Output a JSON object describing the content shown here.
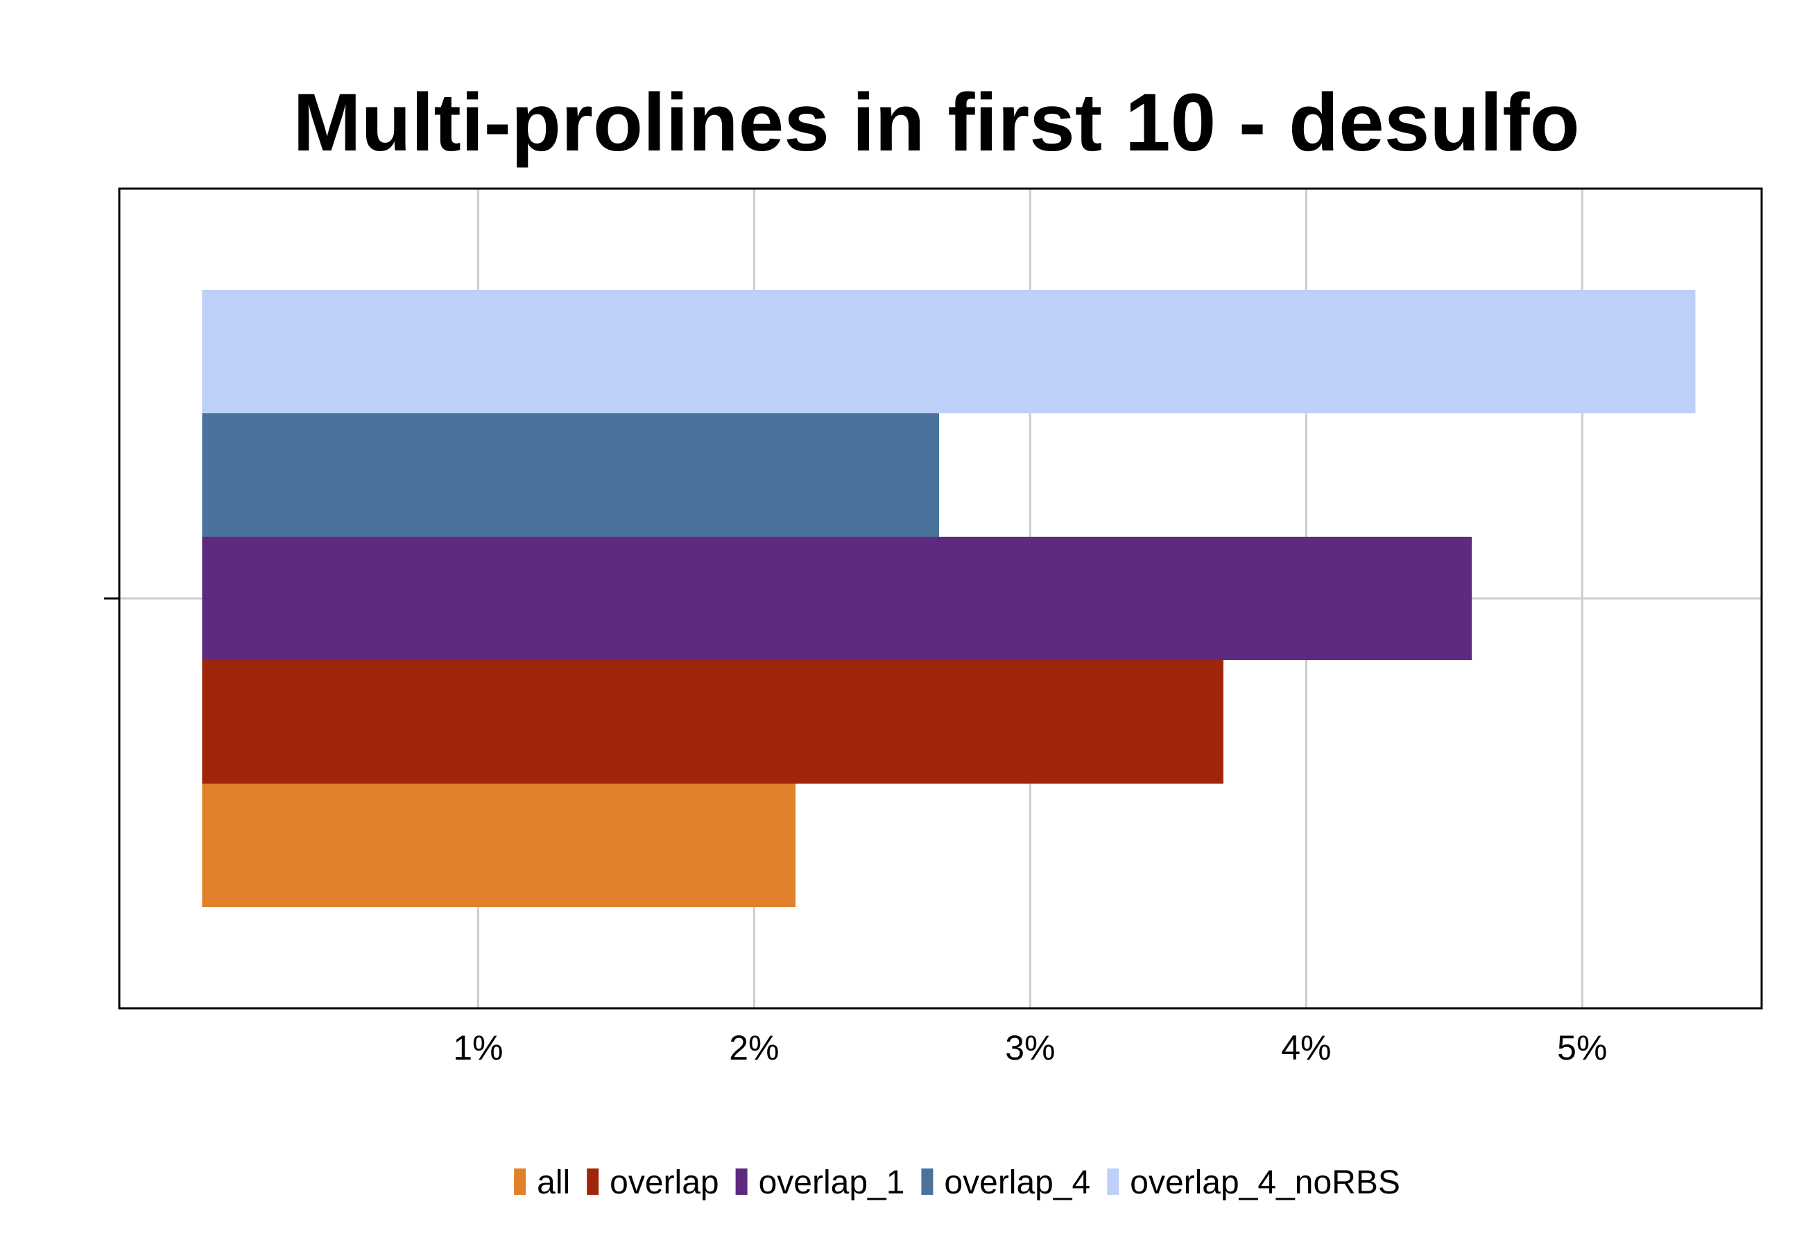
{
  "chart_data": {
    "type": "bar",
    "orientation": "horizontal",
    "title": "Multi-prolines in first 10 - desulfo",
    "xlabel": "",
    "ylabel": "",
    "xlim": [
      -0.3,
      5.65
    ],
    "x_ticks": [
      1,
      2,
      3,
      4,
      5
    ],
    "x_tick_labels": [
      "1%",
      "2%",
      "3%",
      "4%",
      "5%"
    ],
    "grid": true,
    "legend_position": "bottom",
    "series": [
      {
        "name": "all",
        "value": 2.15,
        "color": "#E0802B"
      },
      {
        "name": "overlap",
        "value": 3.7,
        "color": "#A0260B"
      },
      {
        "name": "overlap_1",
        "value": 4.6,
        "color": "#5E2A7F"
      },
      {
        "name": "overlap_4",
        "value": 2.67,
        "color": "#4A739C"
      },
      {
        "name": "overlap_4_noRBS",
        "value": 5.41,
        "color": "#BCD0F8"
      }
    ]
  }
}
